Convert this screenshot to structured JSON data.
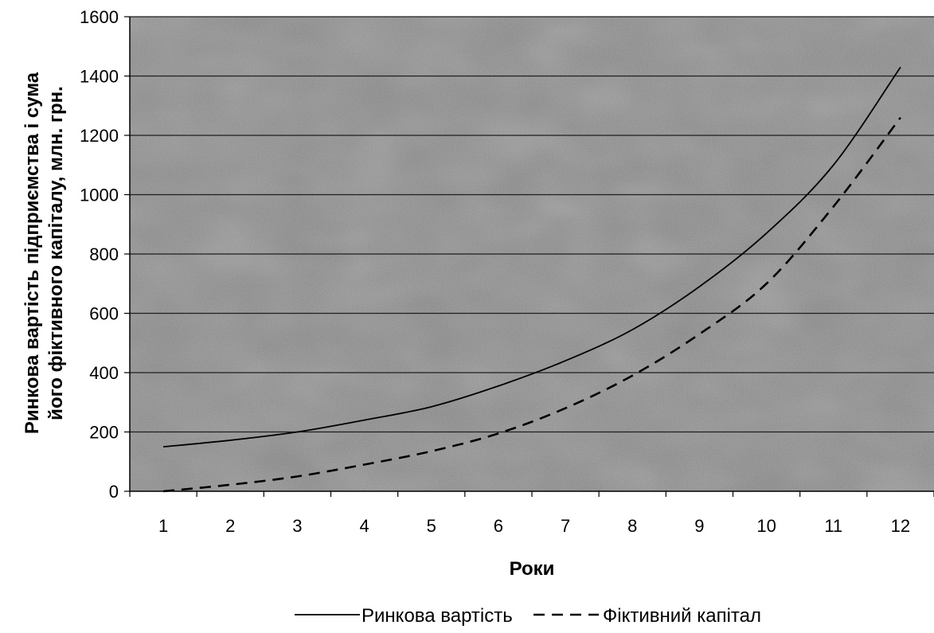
{
  "chart_data": {
    "type": "line",
    "title": "",
    "xlabel": "Роки",
    "ylabel": [
      "Ринкова вартість підприємства і сума",
      "його фіктивного капіталу, млн. грн."
    ],
    "x": [
      1,
      2,
      3,
      4,
      5,
      6,
      7,
      8,
      9,
      10,
      11,
      12
    ],
    "ylim": [
      0,
      1600
    ],
    "yticks": [
      0,
      200,
      400,
      600,
      800,
      1000,
      1200,
      1400,
      1600
    ],
    "grid": true,
    "legend_position": "bottom-center",
    "series": [
      {
        "name": "Ринкова вартість",
        "line_style": "solid",
        "color": "#000000",
        "values": [
          150,
          172,
          200,
          240,
          285,
          355,
          440,
          545,
          690,
          870,
          1100,
          1430
        ]
      },
      {
        "name": "Фіктивний капітал",
        "line_style": "dashed",
        "color": "#000000",
        "values": [
          0,
          22,
          50,
          90,
          135,
          195,
          280,
          390,
          530,
          700,
          960,
          1260
        ]
      }
    ]
  },
  "colors": {
    "plot_background": "#8a8a8a",
    "grid_line": "#1e1e1e",
    "axis": "#000000"
  }
}
